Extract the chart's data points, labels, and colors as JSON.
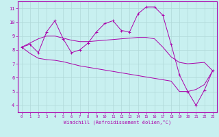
{
  "xlabel": "Windchill (Refroidissement éolien,°C)",
  "bg_color": "#c8f0f0",
  "line_color": "#aa00aa",
  "grid_color": "#b0d8d8",
  "x_hours": [
    0,
    1,
    2,
    3,
    4,
    5,
    6,
    7,
    8,
    9,
    10,
    11,
    12,
    13,
    14,
    15,
    16,
    17,
    18,
    19,
    20,
    21,
    22,
    23
  ],
  "y_actual": [
    8.2,
    8.4,
    7.8,
    9.3,
    10.1,
    8.8,
    7.8,
    8.0,
    8.5,
    9.3,
    9.9,
    10.1,
    9.4,
    9.3,
    10.6,
    11.1,
    11.1,
    10.5,
    8.4,
    6.2,
    5.0,
    4.0,
    5.1,
    6.5
  ],
  "y_upper": [
    8.2,
    8.5,
    8.8,
    9.0,
    9.0,
    8.85,
    8.7,
    8.6,
    8.6,
    8.65,
    8.7,
    8.75,
    8.8,
    8.85,
    8.9,
    8.9,
    8.8,
    8.2,
    7.5,
    7.1,
    7.0,
    7.05,
    7.1,
    6.5
  ],
  "y_lower": [
    8.2,
    7.75,
    7.4,
    7.3,
    7.25,
    7.15,
    7.0,
    6.85,
    6.75,
    6.65,
    6.55,
    6.45,
    6.35,
    6.25,
    6.15,
    6.05,
    5.95,
    5.85,
    5.75,
    5.0,
    5.0,
    5.15,
    5.5,
    6.5
  ],
  "ylim": [
    3.5,
    11.5
  ],
  "xlim": [
    -0.5,
    23.5
  ],
  "yticks": [
    4,
    5,
    6,
    7,
    8,
    9,
    10,
    11
  ],
  "xticks": [
    0,
    1,
    2,
    3,
    4,
    5,
    6,
    7,
    8,
    9,
    10,
    11,
    12,
    13,
    14,
    15,
    16,
    17,
    18,
    19,
    20,
    21,
    22,
    23
  ]
}
